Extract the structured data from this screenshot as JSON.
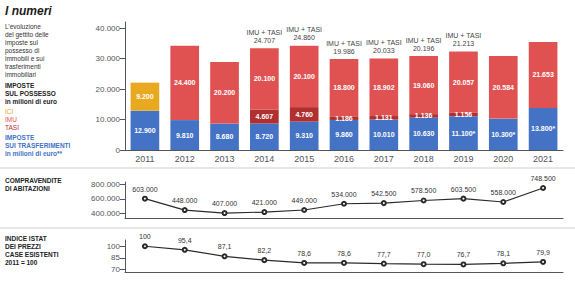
{
  "chart_data": [
    {
      "type": "bar",
      "title": "I numeri",
      "subtitle": "L’evoluzione\ndel gettito delle\nimposte sul\npossesso di\nimmobili e sui\ntrasferimenti\nimmobiliari",
      "annotations": [
        {
          "text": "IMPOSTE\nSUL POSSESSO\nin milioni di euro"
        },
        {
          "x": "2014",
          "text": "IMU + TASI\n24.707"
        },
        {
          "x": "2015",
          "text": "IMU + TASI\n24.860"
        },
        {
          "x": "2016",
          "text": "IMU + TASI\n19.986"
        },
        {
          "x": "2017",
          "text": "IMU + TASI\n20.033"
        },
        {
          "x": "2018",
          "text": "IMU + TASI\n20.196"
        },
        {
          "x": "2019",
          "text": "IMU + TASI\n21.213"
        }
      ],
      "categories": [
        "2011",
        "2012",
        "2013",
        "2014",
        "2015",
        "2016",
        "2017",
        "2018",
        "2019",
        "2020",
        "2021"
      ],
      "series": [
        {
          "name": "IMPOSTE\nSUI TRASFERIMENTI\nin milioni di euro**",
          "color": "#4472c4",
          "values": [
            12900,
            9810,
            8680,
            8720,
            9310,
            9860,
            10010,
            10630,
            11100,
            10300,
            13800
          ],
          "value_labels": [
            "12.900",
            "9.810",
            "8.680",
            "8.720",
            "9.310",
            "9.860",
            "10.010",
            "10.630",
            "11.100*",
            "10.300*",
            "13.800*"
          ]
        },
        {
          "name": "TASI",
          "color": "#b03030",
          "values": [
            0,
            0,
            0,
            4607,
            4760,
            1186,
            1131,
            1136,
            1156,
            0,
            0
          ],
          "value_labels": [
            null,
            null,
            null,
            "4.607",
            "4.760",
            "1.186",
            "1.131",
            "1.136",
            "1.156",
            null,
            null
          ]
        },
        {
          "name": "IMU",
          "color": "#e05252",
          "values": [
            0,
            24400,
            20200,
            20100,
            20100,
            18800,
            18902,
            19060,
            20057,
            20584,
            21653
          ],
          "value_labels": [
            null,
            "24.400",
            "20.200",
            "20.100",
            "20.100",
            "18.800",
            "18.902",
            "19.060",
            "20.057",
            "20.584",
            "21.653"
          ]
        },
        {
          "name": "ICI",
          "color": "#e8a820",
          "values": [
            9200,
            0,
            0,
            0,
            0,
            0,
            0,
            0,
            0,
            0,
            0
          ],
          "value_labels": [
            "9.200",
            null,
            null,
            null,
            null,
            null,
            null,
            null,
            null,
            null,
            null
          ]
        }
      ],
      "stacked": true,
      "data_labels": true,
      "ylim": [
        0,
        42000
      ],
      "yticks": [
        0,
        {
          "value": 10000,
          "label": "10.000"
        },
        {
          "value": 20000,
          "label": "20.000"
        },
        {
          "value": 30000,
          "label": "30.000"
        },
        {
          "value": 40000,
          "label": "40.000"
        }
      ],
      "grid": false
    },
    {
      "type": "line",
      "title": "COMPRAVENDITE\nDI ABITAZIONI",
      "categories": [
        "2011",
        "2012",
        "2013",
        "2014",
        "2015",
        "2016",
        "2017",
        "2018",
        "2019",
        "2020",
        "2021"
      ],
      "values": [
        603000,
        448000,
        407000,
        421000,
        449000,
        534000,
        542500,
        578500,
        603500,
        558000,
        748500
      ],
      "value_labels": [
        "603.000",
        "448.000",
        "407.000",
        "421.000",
        "449.000",
        "534.000",
        "542.500",
        "578.500",
        "603.500",
        "558.000",
        "748.500"
      ],
      "color": "#2a2a2a",
      "marker": "circle",
      "line_style": "solid",
      "data_labels": true,
      "ylim": [
        340000,
        830000
      ],
      "yticks": [
        {
          "value": 400000,
          "label": "400.000"
        },
        {
          "value": 600000,
          "label": "600.000"
        },
        {
          "value": 800000,
          "label": "800.000"
        }
      ],
      "tick_labels": "y",
      "grid": false
    },
    {
      "type": "line",
      "title": "INDICE ISTAT\nDEI PREZZI\nCASE ESISTENTI\n2011 = 100",
      "categories": [
        "2011",
        "2012",
        "2013",
        "2014",
        "2015",
        "2016",
        "2017",
        "2018",
        "2019",
        "2020",
        "2021"
      ],
      "values": [
        100.0,
        95.4,
        87.1,
        82.2,
        78.6,
        78.6,
        77.7,
        77.0,
        76.7,
        78.1,
        79.9
      ],
      "value_labels": [
        "100",
        "95,4",
        "87,1",
        "82,2",
        "78,6",
        "78,6",
        "77,7",
        "77,0",
        "76,7",
        "78,1",
        "79,9"
      ],
      "color": "#2a2a2a",
      "marker": "circle",
      "line_style": "solid",
      "data_labels": true,
      "ylim": [
        67,
        108
      ],
      "yticks": [
        70,
        85,
        100
      ],
      "tick_labels": "y",
      "grid": false
    }
  ]
}
